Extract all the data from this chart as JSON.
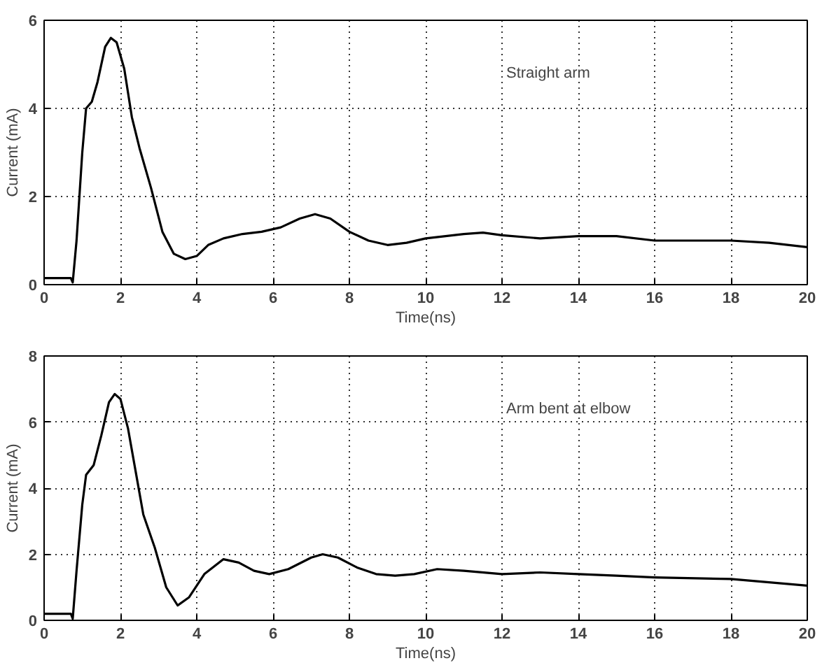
{
  "chart_data": [
    {
      "type": "line",
      "xlabel": "Time(ns)",
      "ylabel": "Current (mA)",
      "annotations": [
        "Straight arm"
      ],
      "xlim": [
        0,
        20
      ],
      "ylim": [
        0,
        6
      ],
      "xticks": [
        0,
        2,
        4,
        6,
        8,
        10,
        12,
        14,
        16,
        18,
        20
      ],
      "yticks": [
        0,
        2,
        4,
        6
      ],
      "grid": true,
      "line_style": "solid",
      "series": [
        {
          "color": "#000000",
          "x": [
            0,
            0.7,
            0.75,
            0.85,
            1,
            1.1,
            1.25,
            1.4,
            1.6,
            1.75,
            1.9,
            2.1,
            2.3,
            2.5,
            2.8,
            3.1,
            3.4,
            3.7,
            4,
            4.3,
            4.7,
            5.2,
            5.7,
            6.2,
            6.7,
            7.1,
            7.5,
            8,
            8.5,
            9,
            9.5,
            10,
            11,
            11.5,
            12,
            13,
            14,
            15,
            16,
            17,
            18,
            19,
            20
          ],
          "values": [
            0.15,
            0.15,
            0.05,
            1,
            3,
            4,
            4.15,
            4.6,
            5.4,
            5.6,
            5.5,
            4.9,
            3.8,
            3.1,
            2.2,
            1.2,
            0.7,
            0.58,
            0.65,
            0.9,
            1.05,
            1.15,
            1.2,
            1.3,
            1.5,
            1.6,
            1.5,
            1.2,
            1.0,
            0.9,
            0.95,
            1.05,
            1.15,
            1.18,
            1.12,
            1.05,
            1.1,
            1.1,
            1.0,
            1.0,
            1.0,
            0.95,
            0.85
          ]
        }
      ]
    },
    {
      "type": "line",
      "xlabel": "Time(ns)",
      "ylabel": "Current (mA)",
      "annotations": [
        "Arm bent at elbow"
      ],
      "xlim": [
        0,
        20
      ],
      "ylim": [
        0,
        8
      ],
      "xticks": [
        0,
        2,
        4,
        6,
        8,
        10,
        12,
        14,
        16,
        18,
        20
      ],
      "yticks": [
        0,
        2,
        4,
        6,
        8
      ],
      "grid": true,
      "line_style": "solid",
      "series": [
        {
          "color": "#000000",
          "x": [
            0,
            0.7,
            0.75,
            0.85,
            1,
            1.1,
            1.3,
            1.5,
            1.7,
            1.85,
            2,
            2.2,
            2.4,
            2.6,
            2.9,
            3.2,
            3.5,
            3.8,
            4.2,
            4.7,
            5.1,
            5.5,
            5.9,
            6.4,
            7,
            7.3,
            7.7,
            8.2,
            8.7,
            9.2,
            9.7,
            10.3,
            11,
            12,
            13,
            14,
            15,
            16,
            18,
            19,
            20
          ],
          "values": [
            0.2,
            0.2,
            0.05,
            1.5,
            3.5,
            4.4,
            4.7,
            5.6,
            6.6,
            6.85,
            6.7,
            5.8,
            4.5,
            3.2,
            2.2,
            1.0,
            0.45,
            0.7,
            1.4,
            1.85,
            1.75,
            1.5,
            1.4,
            1.55,
            1.9,
            2.0,
            1.9,
            1.6,
            1.4,
            1.35,
            1.4,
            1.55,
            1.5,
            1.4,
            1.45,
            1.4,
            1.35,
            1.3,
            1.25,
            1.15,
            1.05
          ]
        }
      ]
    }
  ]
}
